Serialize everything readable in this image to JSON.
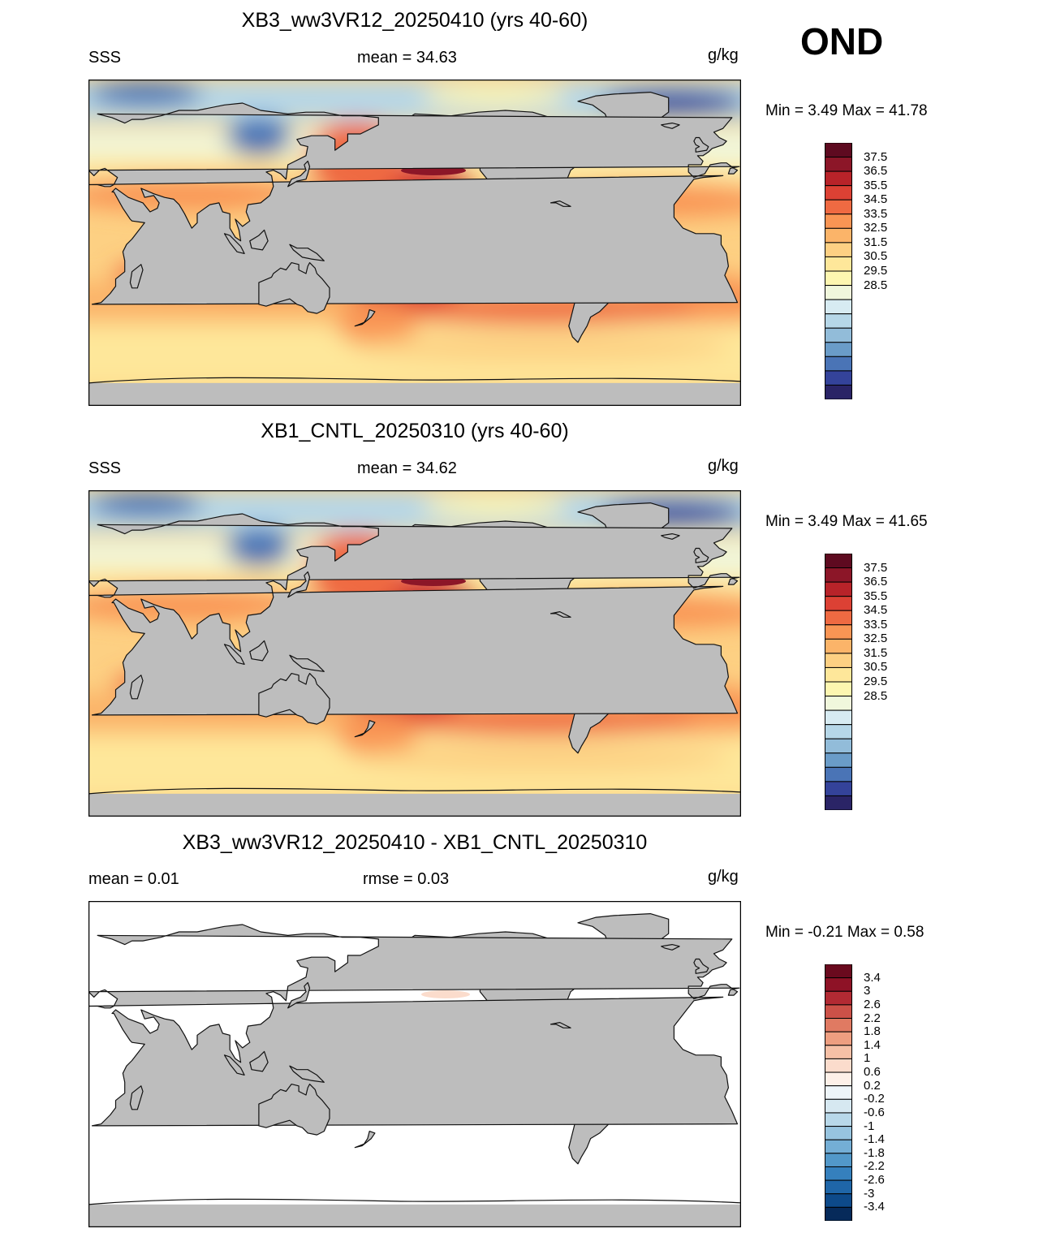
{
  "season": "OND",
  "panels": [
    {
      "title": "XB3_ww3VR12_20250410 (yrs 40-60)",
      "left_label": "SSS",
      "center_label": "mean =  34.63",
      "units": "g/kg",
      "minmax": "Min =   3.49 Max =  41.78",
      "colors": [
        "#2a2466",
        "#34439a",
        "#4a74b6",
        "#6a9cc8",
        "#92bcd9",
        "#b6d7e8",
        "#d7ebf2",
        "#f0f7dc",
        "#fdf6b0",
        "#fee79a",
        "#fdd083",
        "#fbb469",
        "#f99554",
        "#ef6a42",
        "#dc4134",
        "#b82329",
        "#8c1628",
        "#5e0a20"
      ],
      "labels": [
        "37.5",
        "36.5",
        "35.5",
        "34.5",
        "33.5",
        "32.5",
        "31.5",
        "30.5",
        "29.5",
        "28.5"
      ],
      "variant": "a"
    },
    {
      "title": "XB1_CNTL_20250310 (yrs 40-60)",
      "left_label": "SSS",
      "center_label": "mean =  34.62",
      "units": "g/kg",
      "minmax": "Min =   3.49 Max =  41.65",
      "colors": [
        "#2a2466",
        "#34439a",
        "#4a74b6",
        "#6a9cc8",
        "#92bcd9",
        "#b6d7e8",
        "#d7ebf2",
        "#f0f7dc",
        "#fdf6b0",
        "#fee79a",
        "#fdd083",
        "#fbb469",
        "#f99554",
        "#ef6a42",
        "#dc4134",
        "#b82329",
        "#8c1628",
        "#5e0a20"
      ],
      "labels": [
        "37.5",
        "36.5",
        "35.5",
        "34.5",
        "33.5",
        "32.5",
        "31.5",
        "30.5",
        "29.5",
        "28.5"
      ],
      "variant": "b"
    },
    {
      "title": "XB3_ww3VR12_20250410 - XB1_CNTL_20250310",
      "left_label": "mean =   0.01",
      "center_label": "rmse =   0.03",
      "units": "g/kg",
      "minmax": "Min =  -0.21 Max =   0.58",
      "colors": [
        "#062a5a",
        "#0d4a8a",
        "#1f66a8",
        "#3580bd",
        "#5298c9",
        "#74aed5",
        "#97c4df",
        "#b8d8e9",
        "#d6e8f1",
        "#eef5f9",
        "#fdf0e8",
        "#fbdccc",
        "#f6c0a6",
        "#ee9e80",
        "#e07a62",
        "#cc5148",
        "#b22a33",
        "#8e1226",
        "#6a0a1e"
      ],
      "labels": [
        "3.4",
        "3",
        "2.6",
        "2.2",
        "1.8",
        "1.4",
        "1",
        "0.6",
        "0.2",
        "-0.2",
        "-0.6",
        "-1",
        "-1.4",
        "-1.8",
        "-2.2",
        "-2.6",
        "-3",
        "-3.4"
      ],
      "variant": "diff"
    }
  ]
}
